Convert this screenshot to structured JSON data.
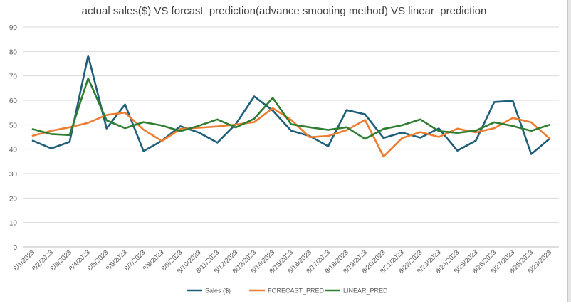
{
  "chart_data": {
    "type": "line",
    "title": "actual sales($) VS  forcast_prediction(advance smooting method)  VS  linear_prediction",
    "xlabel": "",
    "ylabel": "",
    "ylim": [
      0,
      90
    ],
    "yticks": [
      0,
      10,
      20,
      30,
      40,
      50,
      60,
      70,
      80,
      90
    ],
    "grid": true,
    "legend_position": "bottom",
    "categories": [
      "8/1/2023",
      "8/2/2023",
      "8/3/2023",
      "8/4/2023",
      "8/5/2023",
      "8/6/2023",
      "8/7/2023",
      "8/8/2023",
      "8/9/2023",
      "8/10/2023",
      "8/11/2023",
      "8/12/2023",
      "8/13/2023",
      "8/14/2023",
      "8/15/2023",
      "8/16/2023",
      "8/17/2023",
      "8/18/2023",
      "8/19/2023",
      "8/20/2023",
      "8/21/2023",
      "8/22/2023",
      "8/23/2023",
      "8/24/2023",
      "8/25/2023",
      "8/26/2023",
      "8/27/2023",
      "8/28/2023",
      "8/29/2023"
    ],
    "series": [
      {
        "name": "Sales ($)",
        "color": "#1f5f7a",
        "values": [
          43.5,
          40.3,
          43.0,
          78.3,
          48.5,
          58.3,
          39.2,
          43.5,
          49.4,
          46.8,
          42.7,
          50.3,
          61.6,
          55.8,
          47.6,
          45.4,
          41.2,
          56.0,
          54.3,
          44.6,
          46.8,
          44.7,
          48.5,
          39.4,
          43.5,
          59.3,
          59.8,
          38.0,
          44.3
        ]
      },
      {
        "name": "FORECAST_PRED",
        "color": "#ed7d31",
        "values": [
          45.5,
          47.5,
          49.0,
          50.8,
          54.0,
          55.0,
          48.0,
          43.3,
          48.3,
          48.8,
          49.3,
          50.1,
          51.1,
          56.8,
          52.0,
          44.9,
          45.4,
          47.8,
          52.0,
          37.0,
          44.5,
          47.0,
          45.0,
          48.4,
          46.9,
          48.6,
          52.8,
          51.0,
          44.3
        ]
      },
      {
        "name": "LINEAR_PRED",
        "color": "#2e7d32",
        "values": [
          48.2,
          46.2,
          45.8,
          69.0,
          51.8,
          48.6,
          51.1,
          49.7,
          47.4,
          49.6,
          52.2,
          48.9,
          52.5,
          61.0,
          50.2,
          49.0,
          47.9,
          49.0,
          44.2,
          48.3,
          49.8,
          52.2,
          47.4,
          46.7,
          47.6,
          51.0,
          49.5,
          47.5,
          50.0
        ]
      }
    ]
  }
}
